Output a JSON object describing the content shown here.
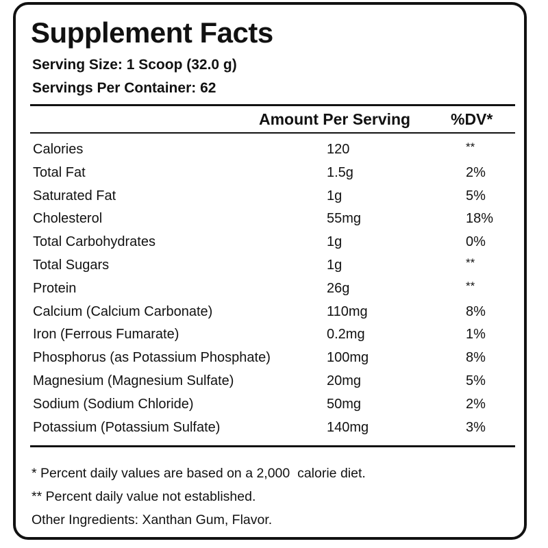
{
  "label": {
    "title": "Supplement Facts",
    "serving_size": "Serving Size: 1 Scoop (32.0 g)",
    "servings_per_container": "Servings Per Container: 62",
    "columns": {
      "amount": "Amount Per Serving",
      "dv": "%DV*"
    },
    "rows": [
      {
        "name": "Calories",
        "amount": "120",
        "dv": "**"
      },
      {
        "name": "Total Fat",
        "amount": "1.5g",
        "dv": "2%"
      },
      {
        "name": "Saturated Fat",
        "amount": "1g",
        "dv": "5%"
      },
      {
        "name": "Cholesterol",
        "amount": "55mg",
        "dv": "18%"
      },
      {
        "name": "Total Carbohydrates",
        "amount": "1g",
        "dv": "0%"
      },
      {
        "name": "Total Sugars",
        "amount": "1g",
        "dv": "**"
      },
      {
        "name": "Protein",
        "amount": "26g",
        "dv": "**"
      },
      {
        "name": "Calcium (Calcium Carbonate)",
        "amount": "110mg",
        "dv": "8%"
      },
      {
        "name": "Iron (Ferrous Fumarate)",
        "amount": "0.2mg",
        "dv": "1%"
      },
      {
        "name": "Phosphorus (as Potassium Phosphate)",
        "amount": "100mg",
        "dv": "8%"
      },
      {
        "name": "Magnesium (Magnesium Sulfate)",
        "amount": "20mg",
        "dv": "5%"
      },
      {
        "name": "Sodium (Sodium Chloride)",
        "amount": "50mg",
        "dv": "2%"
      },
      {
        "name": "Potassium (Potassium Sulfate)",
        "amount": "140mg",
        "dv": "3%"
      }
    ],
    "footnotes": {
      "daily_values": "* Percent daily values are based on a 2,000  calorie diet.",
      "not_established": "** Percent daily value not established.",
      "other_ingredients": "Other Ingredients: Xanthan Gum, Flavor."
    }
  },
  "colors": {
    "ink": "#111111",
    "background": "#ffffff"
  }
}
